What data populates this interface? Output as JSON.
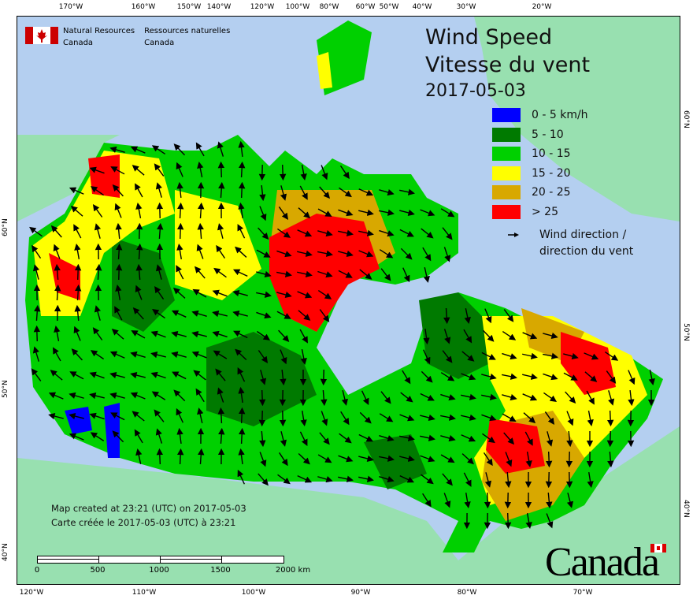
{
  "title": {
    "line1": "Wind Speed",
    "line2": "Vitesse du vent",
    "date": "2017-05-03"
  },
  "agency": {
    "en_line1": "Natural Resources",
    "en_line2": "Canada",
    "fr_line1": "Ressources naturelles",
    "fr_line2": "Canada"
  },
  "wordmark": "Canada",
  "legend": {
    "items": [
      {
        "label": "0 - 5 km/h",
        "color": "#0000ff"
      },
      {
        "label": "5 - 10",
        "color": "#007a00"
      },
      {
        "label": "10 - 15",
        "color": "#00d000"
      },
      {
        "label": "15 - 20",
        "color": "#ffff00"
      },
      {
        "label": "20 - 25",
        "color": "#d8a800"
      },
      {
        "label": "> 25",
        "color": "#ff0000"
      }
    ],
    "wind_direction_line1": "Wind direction /",
    "wind_direction_line2": "direction du vent"
  },
  "created": {
    "en": "Map created at 23:21 (UTC) on 2017-05-03",
    "fr": "Carte créée le 2017-05-03 (UTC) à 23:21"
  },
  "scale_bar": {
    "labels": [
      "0",
      "500",
      "1000",
      "1500",
      "2000  km"
    ]
  },
  "axes": {
    "top": [
      "170°W",
      "160°W",
      "150°W",
      "140°W",
      "120°W",
      "100°W",
      "80°W",
      "60°W",
      "50°W",
      "40°W",
      "30°W",
      "20°W"
    ],
    "bottom": [
      "120°W",
      "110°W",
      "100°W",
      "90°W",
      "80°W",
      "70°W"
    ],
    "left": [
      "60°N",
      "50°N",
      "40°N"
    ],
    "right": [
      "60°N",
      "50°N",
      "40°N"
    ]
  },
  "colors": {
    "ocean": "#b4cff0",
    "land": "#98e0b0"
  }
}
